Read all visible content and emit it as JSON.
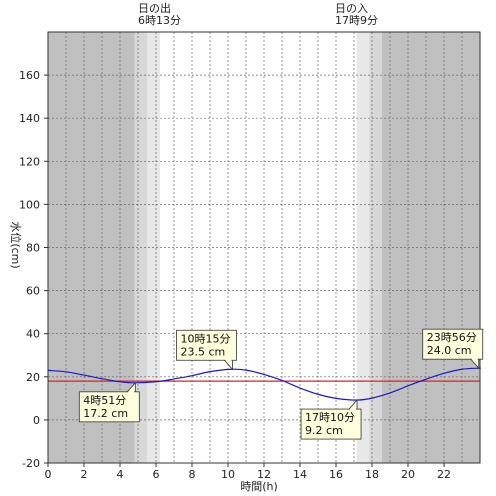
{
  "chart_data": {
    "type": "line",
    "xlabel": "時間(h)",
    "ylabel": "水位(cm)",
    "xlim": [
      0,
      24
    ],
    "ylim": [
      -20,
      180
    ],
    "x_ticks": [
      "0",
      "2",
      "4",
      "6",
      "8",
      "10",
      "12",
      "14",
      "16",
      "18",
      "20",
      "22"
    ],
    "y_ticks": [
      "-20",
      "0",
      "20",
      "40",
      "60",
      "80",
      "100",
      "120",
      "140",
      "160"
    ],
    "grid": true,
    "sunrise": {
      "title": "日の出",
      "time": "6時13分",
      "hour": 6.22
    },
    "sunset": {
      "title": "日の入",
      "time": "17時9分",
      "hour": 17.15
    },
    "reference_level": 18,
    "series": [
      {
        "color": "#1a1acc",
        "x": [
          0,
          1,
          2,
          3,
          4,
          4.85,
          6,
          7,
          8,
          9,
          10.25,
          11,
          12,
          13,
          14,
          15,
          16,
          17.17,
          18,
          19,
          20,
          21,
          22,
          23,
          23.93,
          24
        ],
        "values": [
          23,
          22.3,
          20.8,
          19.1,
          17.7,
          17.2,
          17.7,
          19.0,
          20.5,
          22.4,
          23.5,
          23.1,
          21.1,
          18.3,
          14.8,
          11.9,
          10.0,
          9.2,
          10.1,
          12.5,
          15.8,
          18.9,
          21.6,
          23.5,
          24.0,
          24.0
        ]
      }
    ],
    "annotations": [
      {
        "time": "10時15分",
        "value": "23.5 cm",
        "x": 10.25,
        "y": 23.5,
        "placement": "above"
      },
      {
        "time": "4時51分",
        "value": "17.2 cm",
        "x": 4.85,
        "y": 17.2,
        "placement": "below"
      },
      {
        "time": "17時10分",
        "value": "9.2 cm",
        "x": 17.17,
        "y": 9.2,
        "placement": "below"
      },
      {
        "time": "23時56分",
        "value": "24.0 cm",
        "x": 23.93,
        "y": 24.0,
        "placement": "above"
      }
    ],
    "colors": {
      "night": "#c0c0c0",
      "twilight_outer": "#d8d8d8",
      "twilight_inner": "#e8e8e8",
      "reference_line": "#e02020",
      "annotation_fill": "#ffffdd"
    }
  }
}
